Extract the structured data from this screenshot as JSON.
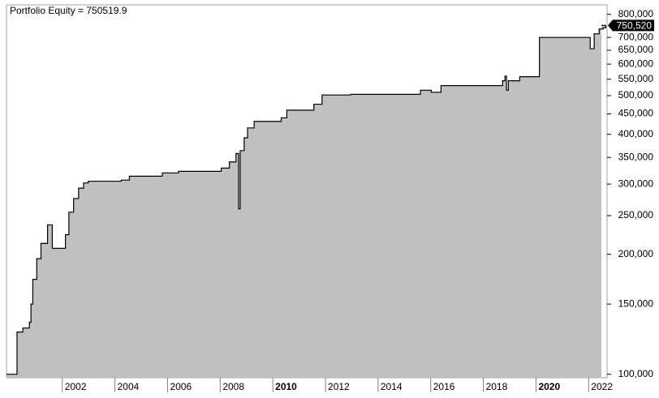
{
  "chart_data": {
    "type": "area",
    "title": "Portfolio Equity = 750519.9",
    "color": "#c0c0c0",
    "line_color": "#000000",
    "log_y": true,
    "x": [
      1999.88,
      2000.28,
      2000.5,
      2000.75,
      2000.81,
      2000.88,
      2001.03,
      2001.19,
      2001.44,
      2001.62,
      2002.12,
      2002.25,
      2002.43,
      2002.62,
      2002.81,
      2002.99,
      2004.24,
      2004.55,
      2005.8,
      2006.42,
      2008.04,
      2008.35,
      2008.6,
      2008.7,
      2008.76,
      2008.91,
      2009.04,
      2009.29,
      2010.32,
      2010.53,
      2011.56,
      2011.87,
      2012.96,
      2015.61,
      2016.02,
      2016.39,
      2018.73,
      2018.82,
      2018.88,
      2018.95,
      2019.38,
      2020.13,
      2022.06,
      2022.21,
      2022.4,
      2022.55,
      2022.65
    ],
    "values": [
      100000,
      127600,
      130600,
      135000,
      150000,
      173000,
      195000,
      213000,
      237000,
      207000,
      224000,
      255000,
      276000,
      293000,
      302000,
      305000,
      307000,
      314000,
      320000,
      323000,
      329000,
      341000,
      358000,
      260000,
      364000,
      392000,
      415000,
      431000,
      440000,
      460000,
      476000,
      502000,
      504000,
      516000,
      510000,
      530000,
      545000,
      560000,
      516000,
      545000,
      558000,
      700000,
      656000,
      715000,
      735000,
      740000,
      750519.9
    ],
    "last_label": {
      "value": 750519.9,
      "label": "750,520"
    },
    "xlim": [
      1999.88,
      2022.7
    ],
    "xticks": [
      2002,
      2004,
      2006,
      2008,
      2010,
      2012,
      2014,
      2016,
      2018,
      2020,
      2022
    ],
    "ylim": [
      98000,
      845000
    ],
    "yticks": [
      {
        "value": 100000,
        "label": "100,000"
      },
      {
        "value": 150000,
        "label": "150,000"
      },
      {
        "value": 200000,
        "label": "200,000"
      },
      {
        "value": 250000,
        "label": "250,000"
      },
      {
        "value": 300000,
        "label": "300,000"
      },
      {
        "value": 350000,
        "label": "350,000"
      },
      {
        "value": 400000,
        "label": "400,000"
      },
      {
        "value": 450000,
        "label": "450,000"
      },
      {
        "value": 500000,
        "label": "500,000"
      },
      {
        "value": 550000,
        "label": "550,000"
      },
      {
        "value": 600000,
        "label": "600,000"
      },
      {
        "value": 650000,
        "label": "650,000"
      },
      {
        "value": 700000,
        "label": "700,000"
      },
      {
        "value": 800000,
        "label": "800,000"
      }
    ]
  }
}
